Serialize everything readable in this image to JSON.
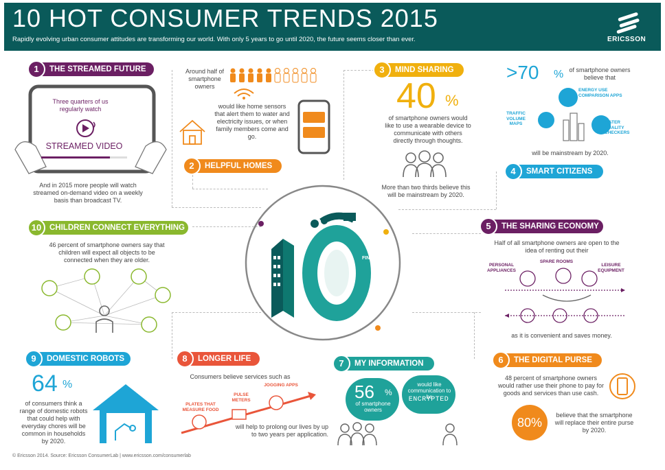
{
  "header": {
    "title": "10 HOT CONSUMER TRENDS 2015",
    "subtitle": "Rapidly evolving urban consumer attitudes are transforming our world. With only 5 years to go until 2020, the future seems closer than ever.",
    "logo": "ERICSSON"
  },
  "colors": {
    "header": "#0a5a5a",
    "purple": "#6b1f63",
    "orange": "#f08a1c",
    "yellow": "#f0b00e",
    "blue": "#1ea5d6",
    "green": "#8ab82e",
    "teal": "#1fa29a",
    "red": "#e9553a"
  },
  "trend1": {
    "num": "1",
    "title": "THE STREAMED FUTURE",
    "tablet_text": "Three quarters of us regularly watch",
    "tablet_label": "STREAMED VIDEO",
    "body": "And in 2015 more people will watch streamed on-demand video on a weekly basis than broadcast TV."
  },
  "trend2": {
    "num": "2",
    "title": "HELPFUL HOMES",
    "stat": "Around half of smartphone owners",
    "body": "would like home sensors that alert them to water and electricity issues, or when family members come and go."
  },
  "trend3": {
    "num": "3",
    "title": "MIND SHARING",
    "big": "40",
    "pct": "%",
    "body": "of smartphone owners would like to use a wearable device to communicate with others directly through thoughts.",
    "body2": "More than two thirds believe this will be mainstream by 2020."
  },
  "trend4": {
    "num": "4",
    "title": "SMART CITIZENS",
    "big": ">70",
    "pct": "%",
    "lead": "of smartphone owners believe that",
    "apps": [
      "ENERGY USE COMPARISON APPS",
      "TRAFFIC VOLUME MAPS",
      "WATER QUALITY CHECKERS"
    ],
    "tail": "will be mainstream by 2020."
  },
  "trend5": {
    "num": "5",
    "title": "THE SHARING ECONOMY",
    "body": "Half of all smartphone owners are open to the idea of renting out their",
    "items": [
      "PERSONAL APPLIANCES",
      "SPARE ROOMS",
      "LEISURE EQUIPMENT"
    ],
    "tail": "as it is convenient and saves money."
  },
  "trend6": {
    "num": "6",
    "title": "THE DIGITAL PURSE",
    "body": "48 percent of smartphone owners would rather use their phone to pay for goods and services than use cash.",
    "big": "80%",
    "tail": "believe that the smartphone will replace their entire purse by 2020."
  },
  "trend7": {
    "num": "7",
    "title": "MY INFORMATION",
    "big": "56",
    "pct": "%",
    "owners": "of smartphone owners",
    "bubble": "would like communication to be",
    "encrypted": "ENCRYPTED"
  },
  "trend8": {
    "num": "8",
    "title": "LONGER LIFE",
    "lead": "Consumers believe services such as",
    "items": [
      "PLATES THAT MEASURE FOOD",
      "PULSE METERS",
      "JOGGING APPS"
    ],
    "tail": "will help to prolong our lives by up to two years per application."
  },
  "trend9": {
    "num": "9",
    "title": "DOMESTIC ROBOTS",
    "big": "64",
    "pct": "%",
    "body": "of consumers think a range of domestic robots that could help with everyday chores will be common in households by 2020."
  },
  "trend10": {
    "num": "10",
    "title": "CHILDREN CONNECT EVERYTHING",
    "body": "46 percent of smartphone owners say that children will expect all objects to be connected when they are older."
  },
  "center": {
    "big": "10",
    "road": "FINISH"
  },
  "footer": "© Ericsson 2014. Source: Ericsson ConsumerLab  |  www.ericsson.com/consumerlab"
}
